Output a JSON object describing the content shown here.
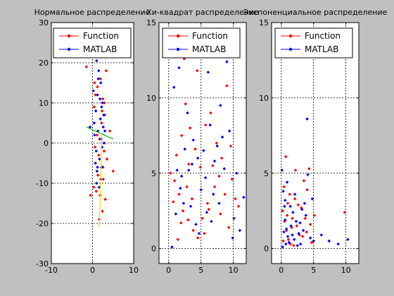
{
  "figure": {
    "background": "#c0c0c0",
    "axes_background": "#ffffff"
  },
  "chart_data": [
    {
      "type": "scatter",
      "title": "Нормальное распределение",
      "xlim": [
        -10,
        10
      ],
      "ylim": [
        -30,
        30
      ],
      "xticks": [
        -10,
        0,
        10
      ],
      "yticks": [
        -30,
        -20,
        -10,
        0,
        10,
        20,
        30
      ],
      "grid": true,
      "legend": {
        "position": "top-right",
        "entries": [
          "Function",
          "MATLAB"
        ]
      },
      "series": [
        {
          "name": "Function",
          "color": "#ff0000",
          "points": [
            [
              -1.5,
              19
            ],
            [
              1.2,
              14
            ],
            [
              0.7,
              12
            ],
            [
              0.4,
              9
            ],
            [
              1.9,
              16
            ],
            [
              2.5,
              11
            ],
            [
              3.0,
              7
            ],
            [
              2.2,
              5
            ],
            [
              1.1,
              2
            ],
            [
              0.6,
              -1
            ],
            [
              1.5,
              -3
            ],
            [
              2.8,
              -2
            ],
            [
              2.1,
              -6
            ],
            [
              3.5,
              -4
            ],
            [
              1.3,
              -8
            ],
            [
              0.3,
              -11
            ],
            [
              2.6,
              -9
            ],
            [
              1.8,
              -13
            ],
            [
              0.9,
              -12
            ],
            [
              3.1,
              -14
            ],
            [
              2.4,
              -17
            ],
            [
              1.6,
              -19
            ],
            [
              5.0,
              -7
            ],
            [
              4.2,
              3
            ],
            [
              -0.5,
              -13
            ],
            [
              2.3,
              8
            ],
            [
              1.7,
              1
            ],
            [
              2.9,
              10
            ],
            [
              0.5,
              15
            ],
            [
              3.3,
              18
            ]
          ]
        },
        {
          "name": "MATLAB",
          "color": "#0000ff",
          "points": [
            [
              1.0,
              20.5
            ],
            [
              1.5,
              18
            ],
            [
              2.0,
              15
            ],
            [
              1.2,
              12
            ],
            [
              2.4,
              10
            ],
            [
              0.8,
              8
            ],
            [
              1.9,
              6
            ],
            [
              2.6,
              4
            ],
            [
              1.3,
              3
            ],
            [
              2.1,
              1
            ],
            [
              0.9,
              -2
            ],
            [
              1.7,
              -4
            ],
            [
              2.5,
              -6
            ],
            [
              1.1,
              -7
            ],
            [
              2.0,
              -9
            ],
            [
              1.6,
              -11
            ],
            [
              0.7,
              -5
            ],
            [
              2.8,
              0
            ],
            [
              0.2,
              13
            ],
            [
              1.4,
              16
            ],
            [
              2.2,
              9
            ],
            [
              0.5,
              2
            ],
            [
              3.0,
              3
            ],
            [
              1.0,
              -10
            ],
            [
              2.7,
              7
            ],
            [
              1.8,
              11
            ],
            [
              0.4,
              5
            ],
            [
              2.3,
              -1
            ],
            [
              -0.6,
              4
            ],
            [
              1.2,
              -6
            ]
          ]
        },
        {
          "name": "",
          "color": "#ffd800",
          "points": [
            [
              2.2,
              2
            ],
            [
              2.0,
              -9
            ],
            [
              1.8,
              -16
            ],
            [
              1.6,
              -21
            ]
          ],
          "style": "line"
        },
        {
          "name": "",
          "color": "#00c000",
          "points": [
            [
              -1.5,
              4
            ],
            [
              5.0,
              1
            ]
          ],
          "style": "line"
        }
      ]
    },
    {
      "type": "scatter",
      "title": "Хи-квадрат распределение",
      "xlim": [
        -1.5,
        12
      ],
      "ylim": [
        -1,
        15
      ],
      "xticks": [
        0,
        5,
        10
      ],
      "yticks": [
        0,
        5,
        10,
        15
      ],
      "grid": true,
      "legend": {
        "position": "top-right",
        "entries": [
          "Function",
          "MATLAB"
        ]
      },
      "series": [
        {
          "name": "Function",
          "color": "#ff0000",
          "points": [
            [
              0.3,
              5.0
            ],
            [
              0.9,
              4.5
            ],
            [
              1.6,
              3.6
            ],
            [
              2.2,
              2.5
            ],
            [
              3.0,
              1.9
            ],
            [
              3.8,
              1.2
            ],
            [
              4.5,
              0.7
            ],
            [
              5.2,
              2.0
            ],
            [
              6.0,
              3.0
            ],
            [
              7.1,
              4.1
            ],
            [
              8.0,
              2.3
            ],
            [
              9.3,
              1.4
            ],
            [
              10.3,
              3.3
            ],
            [
              1.2,
              6.2
            ],
            [
              2.0,
              7.5
            ],
            [
              2.6,
              9.6
            ],
            [
              3.3,
              8.0
            ],
            [
              4.1,
              6.6
            ],
            [
              4.9,
              5.4
            ],
            [
              5.7,
              8.2
            ],
            [
              6.5,
              9.0
            ],
            [
              7.4,
              7.0
            ],
            [
              8.2,
              6.0
            ],
            [
              9.0,
              10.8
            ],
            [
              9.8,
              4.6
            ],
            [
              1.4,
              0.6
            ],
            [
              2.8,
              4.1
            ],
            [
              3.6,
              3.3
            ],
            [
              5.5,
              1.0
            ],
            [
              6.8,
              5.5
            ],
            [
              8.7,
              3.6
            ],
            [
              10.8,
              2.8
            ],
            [
              0.7,
              3.1
            ],
            [
              4.4,
              11.8
            ],
            [
              3.1,
              5.6
            ],
            [
              1.9,
              1.7
            ],
            [
              6.2,
              2.6
            ],
            [
              7.8,
              4.8
            ],
            [
              9.6,
              6.8
            ],
            [
              2.4,
              12.6
            ]
          ]
        },
        {
          "name": "MATLAB",
          "color": "#0000ff",
          "points": [
            [
              0.5,
              0.1
            ],
            [
              1.1,
              2.3
            ],
            [
              1.8,
              4.0
            ],
            [
              2.5,
              6.6
            ],
            [
              3.1,
              5.2
            ],
            [
              3.8,
              7.2
            ],
            [
              4.5,
              6.0
            ],
            [
              5.0,
              3.9
            ],
            [
              5.7,
              4.7
            ],
            [
              6.4,
              8.2
            ],
            [
              7.1,
              5.8
            ],
            [
              7.8,
              3.0
            ],
            [
              8.6,
              5.3
            ],
            [
              9.4,
              7.8
            ],
            [
              10.1,
              2.0
            ],
            [
              11.0,
              1.2
            ],
            [
              11.6,
              3.4
            ],
            [
              0.8,
              10.7
            ],
            [
              1.6,
              12.0
            ],
            [
              2.3,
              3.0
            ],
            [
              3.4,
              2.8
            ],
            [
              4.2,
              1.6
            ],
            [
              5.4,
              6.5
            ],
            [
              6.1,
              11.7
            ],
            [
              6.9,
              3.6
            ],
            [
              7.5,
              6.8
            ],
            [
              8.3,
              7.4
            ],
            [
              9.0,
              12.4
            ],
            [
              9.9,
              0.7
            ],
            [
              2.0,
              4.8
            ],
            [
              2.9,
              9.0
            ],
            [
              4.7,
              1.0
            ],
            [
              5.9,
              2.4
            ],
            [
              8.0,
              9.5
            ],
            [
              3.6,
              5.6
            ],
            [
              1.3,
              5.2
            ],
            [
              10.5,
              5.0
            ],
            [
              6.6,
              1.8
            ]
          ]
        }
      ]
    },
    {
      "type": "scatter",
      "title": "Экспоненциальное распределение",
      "xlim": [
        -1.5,
        12
      ],
      "ylim": [
        -1,
        15
      ],
      "xticks": [
        0,
        5,
        10
      ],
      "yticks": [
        0,
        5,
        10,
        15
      ],
      "grid": true,
      "legend": {
        "position": "top-right",
        "entries": [
          "Function",
          "MATLAB"
        ]
      },
      "series": [
        {
          "name": "Function",
          "color": "#ff0000",
          "points": [
            [
              0.2,
              2.5
            ],
            [
              0.5,
              1.8
            ],
            [
              0.8,
              1.2
            ],
            [
              1.1,
              0.6
            ],
            [
              1.4,
              0.3
            ],
            [
              1.7,
              2.0
            ],
            [
              2.1,
              3.3
            ],
            [
              2.4,
              1.5
            ],
            [
              2.8,
              0.9
            ],
            [
              3.1,
              2.7
            ],
            [
              3.5,
              4.5
            ],
            [
              3.9,
              1.1
            ],
            [
              4.3,
              5.3
            ],
            [
              4.7,
              0.4
            ],
            [
              5.1,
              2.2
            ],
            [
              0.4,
              4.1
            ],
            [
              0.7,
              6.1
            ],
            [
              1.3,
              3.6
            ],
            [
              1.9,
              0.2
            ],
            [
              2.6,
              2.9
            ],
            [
              3.3,
              0.8
            ],
            [
              4.0,
              3.9
            ],
            [
              0.9,
              2.2
            ],
            [
              1.6,
              1.4
            ],
            [
              9.8,
              2.4
            ],
            [
              2.2,
              5.2
            ],
            [
              0.3,
              0.5
            ],
            [
              1.0,
              3.0
            ],
            [
              3.7,
              2.0
            ],
            [
              4.5,
              1.6
            ]
          ]
        },
        {
          "name": "MATLAB",
          "color": "#0000ff",
          "points": [
            [
              0.1,
              5.2
            ],
            [
              0.3,
              3.8
            ],
            [
              0.5,
              2.8
            ],
            [
              0.6,
              1.9
            ],
            [
              0.8,
              1.3
            ],
            [
              1.0,
              0.8
            ],
            [
              1.2,
              0.4
            ],
            [
              1.5,
              1.5
            ],
            [
              1.8,
              2.4
            ],
            [
              2.0,
              0.6
            ],
            [
              2.3,
              1.8
            ],
            [
              2.7,
              1.0
            ],
            [
              3.0,
              0.3
            ],
            [
              3.4,
              1.2
            ],
            [
              3.8,
              2.2
            ],
            [
              4.1,
              4.9
            ],
            [
              4.5,
              0.7
            ],
            [
              5.0,
              0.5
            ],
            [
              6.2,
              0.9
            ],
            [
              7.4,
              0.5
            ],
            [
              0.2,
              0.1
            ],
            [
              0.4,
              1.1
            ],
            [
              0.7,
              0.3
            ],
            [
              1.4,
              2.8
            ],
            [
              2.1,
              3.6
            ],
            [
              2.5,
              0.2
            ],
            [
              3.2,
              2.6
            ],
            [
              4.8,
              3.3
            ],
            [
              8.8,
              0.3
            ],
            [
              10.3,
              0.6
            ],
            [
              0.9,
              4.4
            ],
            [
              1.7,
              0.9
            ],
            [
              3.6,
              3.0
            ],
            [
              2.9,
              1.7
            ],
            [
              4.0,
              8.6
            ],
            [
              0.6,
              3.2
            ]
          ]
        }
      ]
    }
  ]
}
